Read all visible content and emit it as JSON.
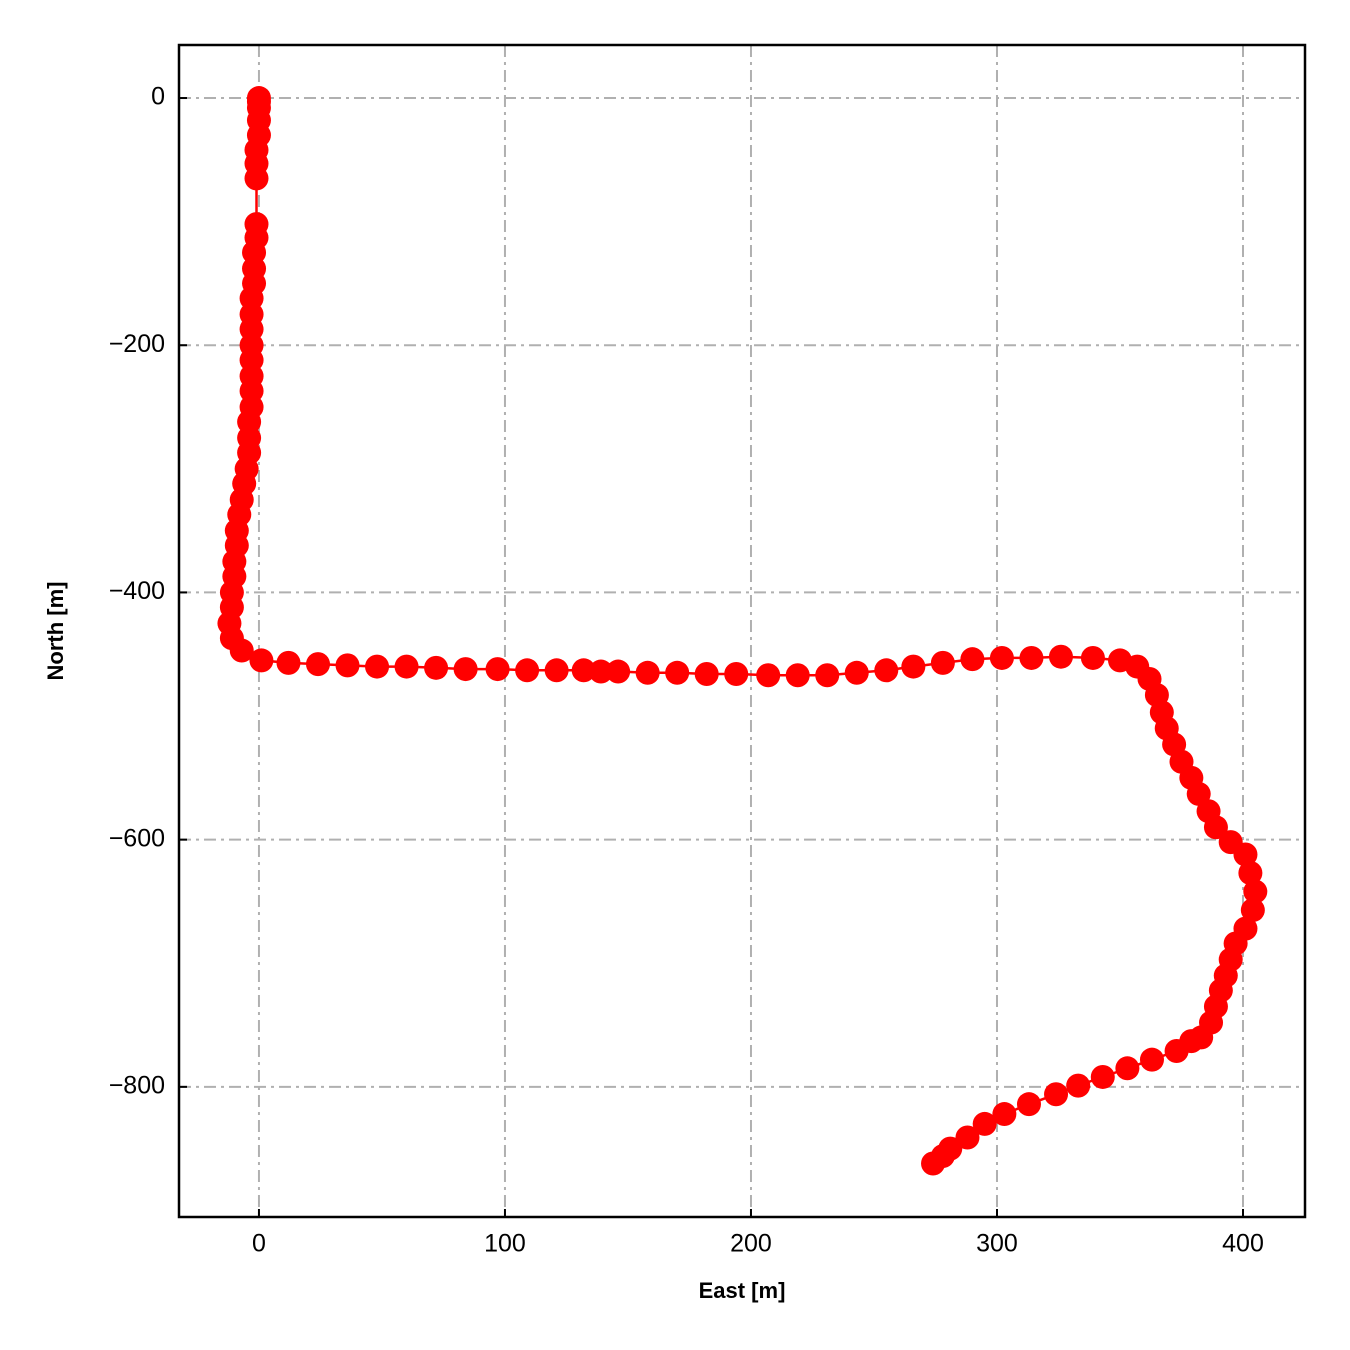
{
  "chart_data": {
    "type": "line",
    "xlabel": "East [m]",
    "ylabel": "North [m]",
    "x": [
      0,
      0,
      0,
      0,
      0,
      -1,
      -1,
      -1,
      -1,
      -1,
      -2,
      -2,
      -2,
      -3,
      -3,
      -3,
      -3,
      -3,
      -3,
      -3,
      -3,
      -4,
      -4,
      -4,
      -5,
      -6,
      -7,
      -8,
      -9,
      -9,
      -10,
      -10,
      -11,
      -11,
      -12,
      -11,
      -7,
      1,
      12,
      24,
      36,
      48,
      60,
      72,
      84,
      97,
      109,
      121,
      132,
      139,
      146,
      158,
      170,
      182,
      194,
      207,
      219,
      231,
      243,
      255,
      266,
      278,
      290,
      302,
      314,
      326,
      339,
      350,
      357,
      362,
      365,
      367,
      369,
      372,
      375,
      379,
      382,
      386,
      389,
      395,
      401,
      403,
      405,
      404,
      401,
      397,
      395,
      393,
      391,
      389,
      387,
      383,
      379,
      373,
      363,
      353,
      343,
      333,
      324,
      313,
      303,
      295,
      288,
      281,
      278,
      274
    ],
    "values": [
      0,
      -3,
      -8,
      -18,
      -30,
      -42,
      -53,
      -65,
      -102,
      -113,
      -125,
      -138,
      -150,
      -162,
      -175,
      -187,
      -200,
      -212,
      -225,
      -237,
      -250,
      -262,
      -275,
      -287,
      -300,
      -312,
      -325,
      -337,
      -350,
      -362,
      -375,
      -387,
      -400,
      -412,
      -425,
      -437,
      -447,
      -455,
      -457,
      -458,
      -459,
      -460,
      -460,
      -461,
      -462,
      -462,
      -463,
      -463,
      -463,
      -464,
      -464,
      -465,
      -465,
      -466,
      -466,
      -467,
      -467,
      -467,
      -465,
      -463,
      -460,
      -457,
      -454,
      -453,
      -453,
      -452,
      -453,
      -455,
      -460,
      -470,
      -483,
      -497,
      -510,
      -523,
      -537,
      -550,
      -563,
      -577,
      -590,
      -602,
      -612,
      -627,
      -642,
      -657,
      -672,
      -684,
      -697,
      -710,
      -722,
      -735,
      -748,
      -760,
      -763,
      -771,
      -778,
      -785,
      -792,
      -799,
      -806,
      -814,
      -822,
      -830,
      -841,
      -850,
      -856,
      -862
    ],
    "color": "#ff0000",
    "markers": true,
    "xlim": [
      -32.5,
      425.2
    ],
    "ylim": [
      -905.3,
      42.9
    ],
    "xticks": [
      0,
      100,
      200,
      300,
      400
    ],
    "yticks": [
      {
        "value": -800,
        "label": "−800"
      },
      {
        "value": -600,
        "label": "−600"
      },
      {
        "value": -400,
        "label": "−400"
      },
      {
        "value": -200,
        "label": "−200"
      },
      0
    ],
    "grid": true
  }
}
